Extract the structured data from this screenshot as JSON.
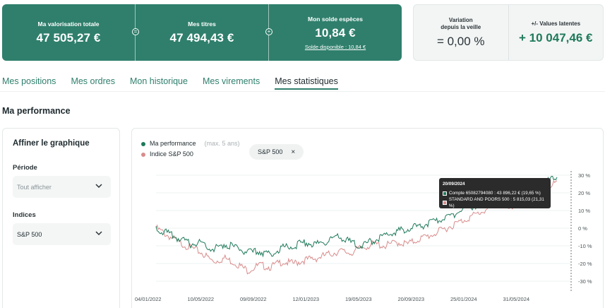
{
  "summary": {
    "valuation_label": "Ma valorisation totale",
    "valuation_value": "47 505,27 €",
    "op1": "=",
    "securities_label": "Mes titres",
    "securities_value": "47 494,43 €",
    "op2": "+",
    "cash_label": "Mon solde espèces",
    "cash_value": "10,84 €",
    "cash_link": "Solde disponible : 10,84 €"
  },
  "variation": {
    "day_label_line1": "Variation",
    "day_label_line2": "depuis la veille",
    "day_value": "= 0,00 %",
    "latent_label": "+/- Values latentes",
    "latent_value": "+ 10 047,46 €"
  },
  "tabs": [
    {
      "label": "Mes positions"
    },
    {
      "label": "Mes ordres"
    },
    {
      "label": "Mon historique"
    },
    {
      "label": "Mes virements"
    },
    {
      "label": "Mes statistiques"
    }
  ],
  "section_title": "Ma performance",
  "filters": {
    "title": "Affiner le graphique",
    "period_label": "Période",
    "period_value": "Tout afficher",
    "indices_label": "Indices",
    "indices_value": "S&P 500"
  },
  "chart": {
    "legend": [
      {
        "name": "Ma performance",
        "note": "(max. 5 ans)",
        "color": "#1f7a5a"
      },
      {
        "name": "Indice S&P 500",
        "note": "",
        "color": "#d98c8c"
      }
    ],
    "chip_label": "S&P 500",
    "chip_close": "×",
    "tooltip": {
      "date": "20/09/2024",
      "row1": "Compte 65082794080 : 43 896,22 € (19,65 %)",
      "row2": "STANDARD AND POORS 500 : 5 815,03 (21,31 %)"
    }
  },
  "chart_data": {
    "type": "line",
    "x_ticks": [
      "04/01/2022",
      "10/05/2022",
      "09/09/2022",
      "12/01/2023",
      "19/05/2023",
      "20/09/2023",
      "25/01/2024",
      "31/05/2024"
    ],
    "y_ticks": [
      "30 %",
      "20 %",
      "10 %",
      "0 %",
      "-10 %",
      "-20 %",
      "-30 %"
    ],
    "ylim": [
      -30,
      30
    ],
    "series": [
      {
        "name": "Ma performance",
        "color": "#1f7a5a",
        "values": [
          0,
          -3,
          -6,
          -9,
          -8,
          -12,
          -9,
          -11,
          -14,
          -13,
          -15,
          -11,
          -10,
          -8,
          -9,
          -7,
          -5,
          -8,
          -10,
          -7,
          -4,
          -2,
          0,
          1,
          3,
          5,
          8,
          11,
          13,
          15,
          18,
          17,
          19.65,
          22,
          26,
          29
        ]
      },
      {
        "name": "Indice S&P 500",
        "color": "#d98c8c",
        "values": [
          0,
          -4,
          -8,
          -11,
          -14,
          -19,
          -17,
          -20,
          -24,
          -21,
          -22,
          -19,
          -20,
          -18,
          -17,
          -15,
          -13,
          -14,
          -11,
          -9,
          -10,
          -8,
          -9,
          -6,
          -4,
          -1,
          2,
          5,
          8,
          11,
          14,
          10,
          21.31,
          16,
          23,
          26
        ]
      }
    ],
    "grid": true
  }
}
